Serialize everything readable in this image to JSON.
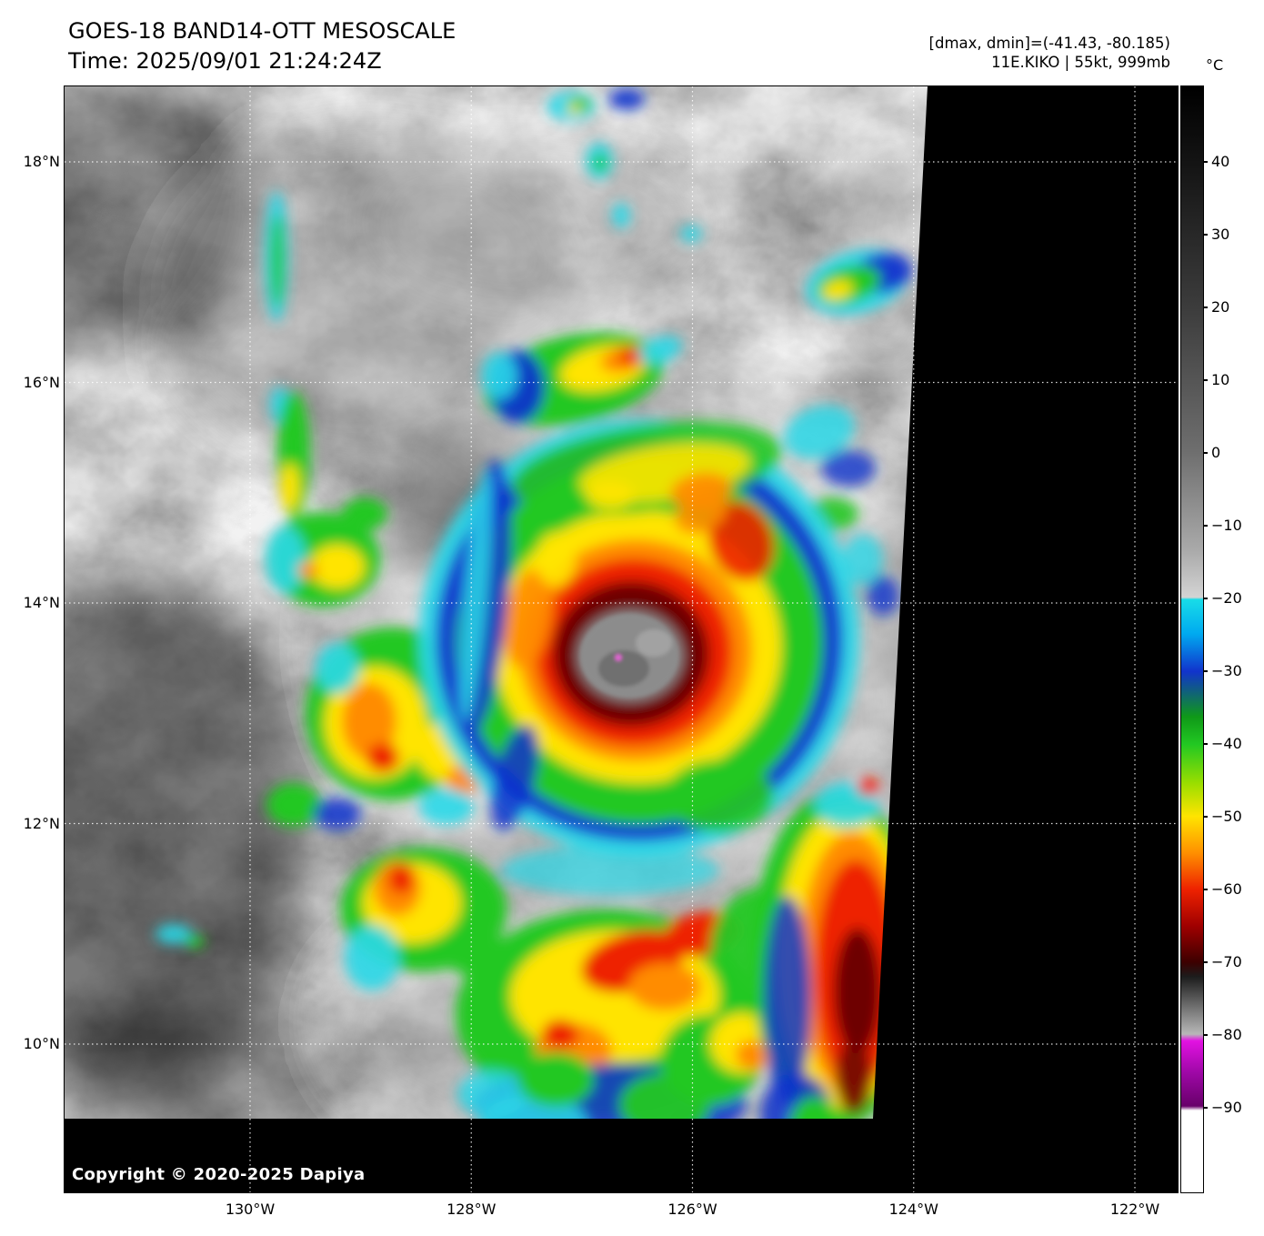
{
  "header": {
    "title": "GOES-18 BAND14-OTT MESOSCALE",
    "time_line": "Time: 2025/09/01 21:24:24Z",
    "range_line": "[dmax, dmin]=(-41.43, -80.185)",
    "storm_line": "11E.KIKO | 55kt, 999mb"
  },
  "axes": {
    "lat_labels": [
      "18°N",
      "16°N",
      "14°N",
      "12°N",
      "10°N"
    ],
    "lon_labels": [
      "130°W",
      "128°W",
      "126°W",
      "124°W",
      "122°W"
    ]
  },
  "colorbar": {
    "unit": "°C",
    "tick_labels": [
      "40",
      "30",
      "20",
      "10",
      "0",
      "−10",
      "−20",
      "−30",
      "−40",
      "−50",
      "−60",
      "−70",
      "−80",
      "−90"
    ]
  },
  "footer": {
    "copyright": "Copyright © 2020-2025 Dapiya"
  },
  "palette": {
    "cyan": "#2ad8e8",
    "blue": "#1133cc",
    "green": "#22c822",
    "yellow": "#ffe400",
    "orange": "#ff8c00",
    "red": "#ee2200",
    "darkred": "#6e0600",
    "magenta": "#f060e0"
  },
  "imagery": {
    "shades": [
      [
        630,
        610,
        335,
        300,
        0,
        "#c0c0c0",
        0.45
      ],
      [
        640,
        640,
        180,
        160,
        0,
        "#d6d6d6",
        0.3
      ],
      [
        330,
        230,
        230,
        185,
        0,
        "#909090",
        0.4
      ],
      [
        620,
        1030,
        330,
        155,
        0,
        "#aaaaaa",
        0.45
      ],
      [
        90,
        820,
        180,
        290,
        0,
        "#000000",
        0.5
      ],
      [
        425,
        455,
        85,
        80,
        0,
        "#000000",
        0.3
      ],
      [
        150,
        1085,
        160,
        80,
        0,
        "#000000",
        0.35
      ],
      [
        905,
        185,
        55,
        135,
        0,
        "#9a9a9a",
        0.4
      ],
      [
        520,
        150,
        190,
        95,
        0,
        "#9c9c9c",
        0.35
      ],
      [
        60,
        140,
        160,
        150,
        0,
        "#000000",
        0.4
      ],
      [
        980,
        700,
        70,
        300,
        0,
        "#5a5a5a",
        0.35
      ]
    ],
    "blobs": [
      [
        557,
        22,
        26,
        16,
        0,
        "cyan",
        0.95
      ],
      [
        566,
        20,
        13,
        8,
        0,
        "green",
        1
      ],
      [
        618,
        14,
        20,
        12,
        0,
        "blue",
        0.9
      ],
      [
        560,
        25,
        7,
        5,
        0,
        "yellow",
        1
      ],
      [
        588,
        82,
        15,
        20,
        0,
        "cyan",
        0.95
      ],
      [
        589,
        84,
        8,
        10,
        0,
        "green",
        1
      ],
      [
        612,
        142,
        10,
        14,
        0,
        "cyan",
        0.9
      ],
      [
        689,
        162,
        12,
        9,
        0,
        "cyan",
        0.9
      ],
      [
        872,
        215,
        58,
        34,
        -15,
        "cyan",
        0.95
      ],
      [
        900,
        205,
        32,
        22,
        -10,
        "blue",
        0.95
      ],
      [
        862,
        218,
        36,
        20,
        -15,
        "green",
        1
      ],
      [
        850,
        224,
        17,
        10,
        -15,
        "yellow",
        1
      ],
      [
        560,
        322,
        100,
        48,
        -12,
        "green",
        1
      ],
      [
        498,
        330,
        30,
        40,
        0,
        "blue",
        0.95
      ],
      [
        478,
        318,
        20,
        26,
        0,
        "cyan",
        0.9
      ],
      [
        592,
        310,
        48,
        24,
        -12,
        "yellow",
        1
      ],
      [
        615,
        300,
        26,
        14,
        -12,
        "orange",
        1
      ],
      [
        622,
        297,
        13,
        8,
        -12,
        "red",
        1
      ],
      [
        655,
        290,
        25,
        14,
        -20,
        "cyan",
        0.9
      ],
      [
        233,
        187,
        13,
        72,
        0,
        "cyan",
        0.9
      ],
      [
        234,
        192,
        7,
        52,
        0,
        "green",
        1
      ],
      [
        236,
        350,
        10,
        20,
        0,
        "cyan",
        0.9
      ],
      [
        252,
        405,
        18,
        70,
        0,
        "green",
        1
      ],
      [
        248,
        440,
        10,
        26,
        0,
        "yellow",
        1
      ],
      [
        285,
        520,
        62,
        52,
        0,
        "green",
        1
      ],
      [
        243,
        520,
        22,
        36,
        0,
        "cyan",
        0.9
      ],
      [
        300,
        528,
        30,
        24,
        0,
        "yellow",
        1
      ],
      [
        268,
        532,
        11,
        9,
        0,
        "orange",
        1
      ],
      [
        330,
        470,
        25,
        18,
        0,
        "green",
        1
      ],
      [
        360,
        690,
        95,
        95,
        0,
        "green",
        1
      ],
      [
        342,
        700,
        56,
        62,
        0,
        "yellow",
        1
      ],
      [
        335,
        698,
        30,
        42,
        0,
        "orange",
        1
      ],
      [
        350,
        738,
        18,
        16,
        0,
        "red",
        1
      ],
      [
        428,
        730,
        42,
        36,
        0,
        "yellow",
        1
      ],
      [
        440,
        762,
        20,
        16,
        0,
        "orange",
        1
      ],
      [
        300,
        640,
        24,
        28,
        0,
        "cyan",
        0.9
      ],
      [
        420,
        792,
        30,
        20,
        0,
        "cyan",
        0.9
      ],
      [
        252,
        790,
        30,
        24,
        0,
        "green",
        1
      ],
      [
        300,
        800,
        26,
        18,
        0,
        "blue",
        0.85
      ],
      [
        395,
        905,
        92,
        68,
        0,
        "green",
        1
      ],
      [
        382,
        898,
        54,
        44,
        0,
        "yellow",
        1
      ],
      [
        366,
        882,
        26,
        30,
        0,
        "orange",
        1
      ],
      [
        370,
        872,
        14,
        16,
        0,
        "red",
        1
      ],
      [
        338,
        958,
        30,
        36,
        0,
        "cyan",
        0.9
      ],
      [
        452,
        952,
        35,
        26,
        0,
        "green",
        1
      ],
      [
        120,
        932,
        20,
        11,
        0,
        "cyan",
        0.9
      ],
      [
        143,
        940,
        11,
        7,
        0,
        "green",
        1
      ],
      [
        595,
        1020,
        165,
        115,
        0,
        "green",
        1
      ],
      [
        605,
        1000,
        115,
        72,
        0,
        "yellow",
        1
      ],
      [
        625,
        962,
        58,
        32,
        -15,
        "red",
        1
      ],
      [
        700,
        932,
        42,
        24,
        -10,
        "red",
        1
      ],
      [
        660,
        990,
        40,
        26,
        0,
        "orange",
        1
      ],
      [
        560,
        1060,
        42,
        30,
        0,
        "orange",
        1
      ],
      [
        545,
        1042,
        20,
        16,
        0,
        "red",
        1
      ],
      [
        600,
        1120,
        150,
        45,
        0,
        "blue",
        0.85
      ],
      [
        515,
        1140,
        60,
        30,
        0,
        "cyan",
        0.85
      ],
      [
        470,
        1108,
        38,
        26,
        0,
        "cyan",
        0.85
      ],
      [
        540,
        1092,
        42,
        30,
        0,
        "green",
        1
      ],
      [
        660,
        1120,
        50,
        35,
        0,
        "green",
        0.95
      ],
      [
        710,
        1070,
        55,
        50,
        0,
        "green",
        1
      ],
      [
        745,
        1052,
        35,
        33,
        0,
        "yellow",
        1
      ],
      [
        756,
        1065,
        18,
        16,
        0,
        "orange",
        1
      ],
      [
        770,
        950,
        60,
        70,
        0,
        "green",
        0.95
      ],
      [
        790,
        960,
        30,
        40,
        0,
        "yellow",
        1
      ],
      [
        850,
        960,
        95,
        185,
        0,
        "green",
        1
      ],
      [
        858,
        960,
        75,
        165,
        0,
        "yellow",
        1
      ],
      [
        866,
        965,
        58,
        145,
        0,
        "orange",
        1
      ],
      [
        870,
        975,
        45,
        125,
        0,
        "red",
        1
      ],
      [
        872,
        995,
        26,
        70,
        0,
        "darkred",
        1
      ],
      [
        868,
        1090,
        20,
        40,
        0,
        "darkred",
        0.9
      ],
      [
        795,
        1005,
        26,
        115,
        0,
        "blue",
        0.85
      ],
      [
        805,
        1130,
        40,
        45,
        0,
        "blue",
        0.85
      ],
      [
        825,
        1145,
        28,
        34,
        0,
        "green",
        1
      ],
      [
        860,
        790,
        35,
        25,
        0,
        "cyan",
        0.9
      ],
      [
        884,
        770,
        12,
        10,
        0,
        "red",
        1
      ],
      [
        830,
        380,
        40,
        28,
        -20,
        "cyan",
        0.85
      ],
      [
        862,
        420,
        30,
        20,
        0,
        "blue",
        0.8
      ],
      [
        845,
        470,
        28,
        18,
        0,
        "green",
        0.9
      ],
      [
        878,
        520,
        22,
        28,
        0,
        "cyan",
        0.8
      ],
      [
        900,
        560,
        18,
        22,
        0,
        "blue",
        0.8
      ],
      [
        632,
        606,
        242,
        240,
        0,
        "cyan",
        0.95
      ],
      [
        632,
        608,
        224,
        222,
        0,
        "blue",
        0.95
      ],
      [
        632,
        611,
        202,
        200,
        0,
        "green",
        1
      ],
      [
        630,
        616,
        158,
        150,
        0,
        "yellow",
        1
      ],
      [
        628,
        620,
        128,
        122,
        0,
        "orange",
        1
      ],
      [
        626,
        622,
        108,
        103,
        0,
        "red",
        1
      ],
      [
        623,
        624,
        86,
        80,
        0,
        "darkred",
        1
      ],
      [
        622,
        626,
        57,
        49,
        0,
        "#909090",
        1
      ],
      [
        640,
        420,
        150,
        48,
        -8,
        "green",
        0.9
      ],
      [
        660,
        425,
        95,
        30,
        -8,
        "yellow",
        0.9
      ],
      [
        700,
        445,
        34,
        20,
        -8,
        "orange",
        0.95
      ],
      [
        600,
        450,
        26,
        16,
        0,
        "yellow",
        0.9
      ],
      [
        744,
        500,
        35,
        45,
        -20,
        "red",
        0.9
      ],
      [
        700,
        470,
        30,
        20,
        -25,
        "orange",
        0.9
      ],
      [
        510,
        585,
        26,
        55,
        10,
        "orange",
        0.9
      ],
      [
        540,
        520,
        22,
        30,
        0,
        "yellow",
        0.9
      ],
      [
        720,
        780,
        60,
        40,
        0,
        "green",
        0.9
      ],
      [
        600,
        862,
        120,
        28,
        0,
        "cyan",
        0.7
      ],
      [
        462,
        560,
        26,
        150,
        5,
        "blue",
        0.9
      ],
      [
        452,
        560,
        13,
        140,
        5,
        "cyan",
        0.85
      ],
      [
        495,
        760,
        22,
        60,
        15,
        "blue",
        0.85
      ]
    ],
    "fine": [
      [
        621,
        626,
        54,
        46,
        0,
        "#8c8c8c",
        1
      ],
      [
        615,
        640,
        28,
        20,
        0,
        "#707070",
        1
      ],
      [
        648,
        612,
        20,
        15,
        0,
        "#a2a2a2",
        1
      ],
      [
        609,
        628,
        3.5,
        3.5,
        0,
        "magenta",
        1
      ]
    ]
  }
}
